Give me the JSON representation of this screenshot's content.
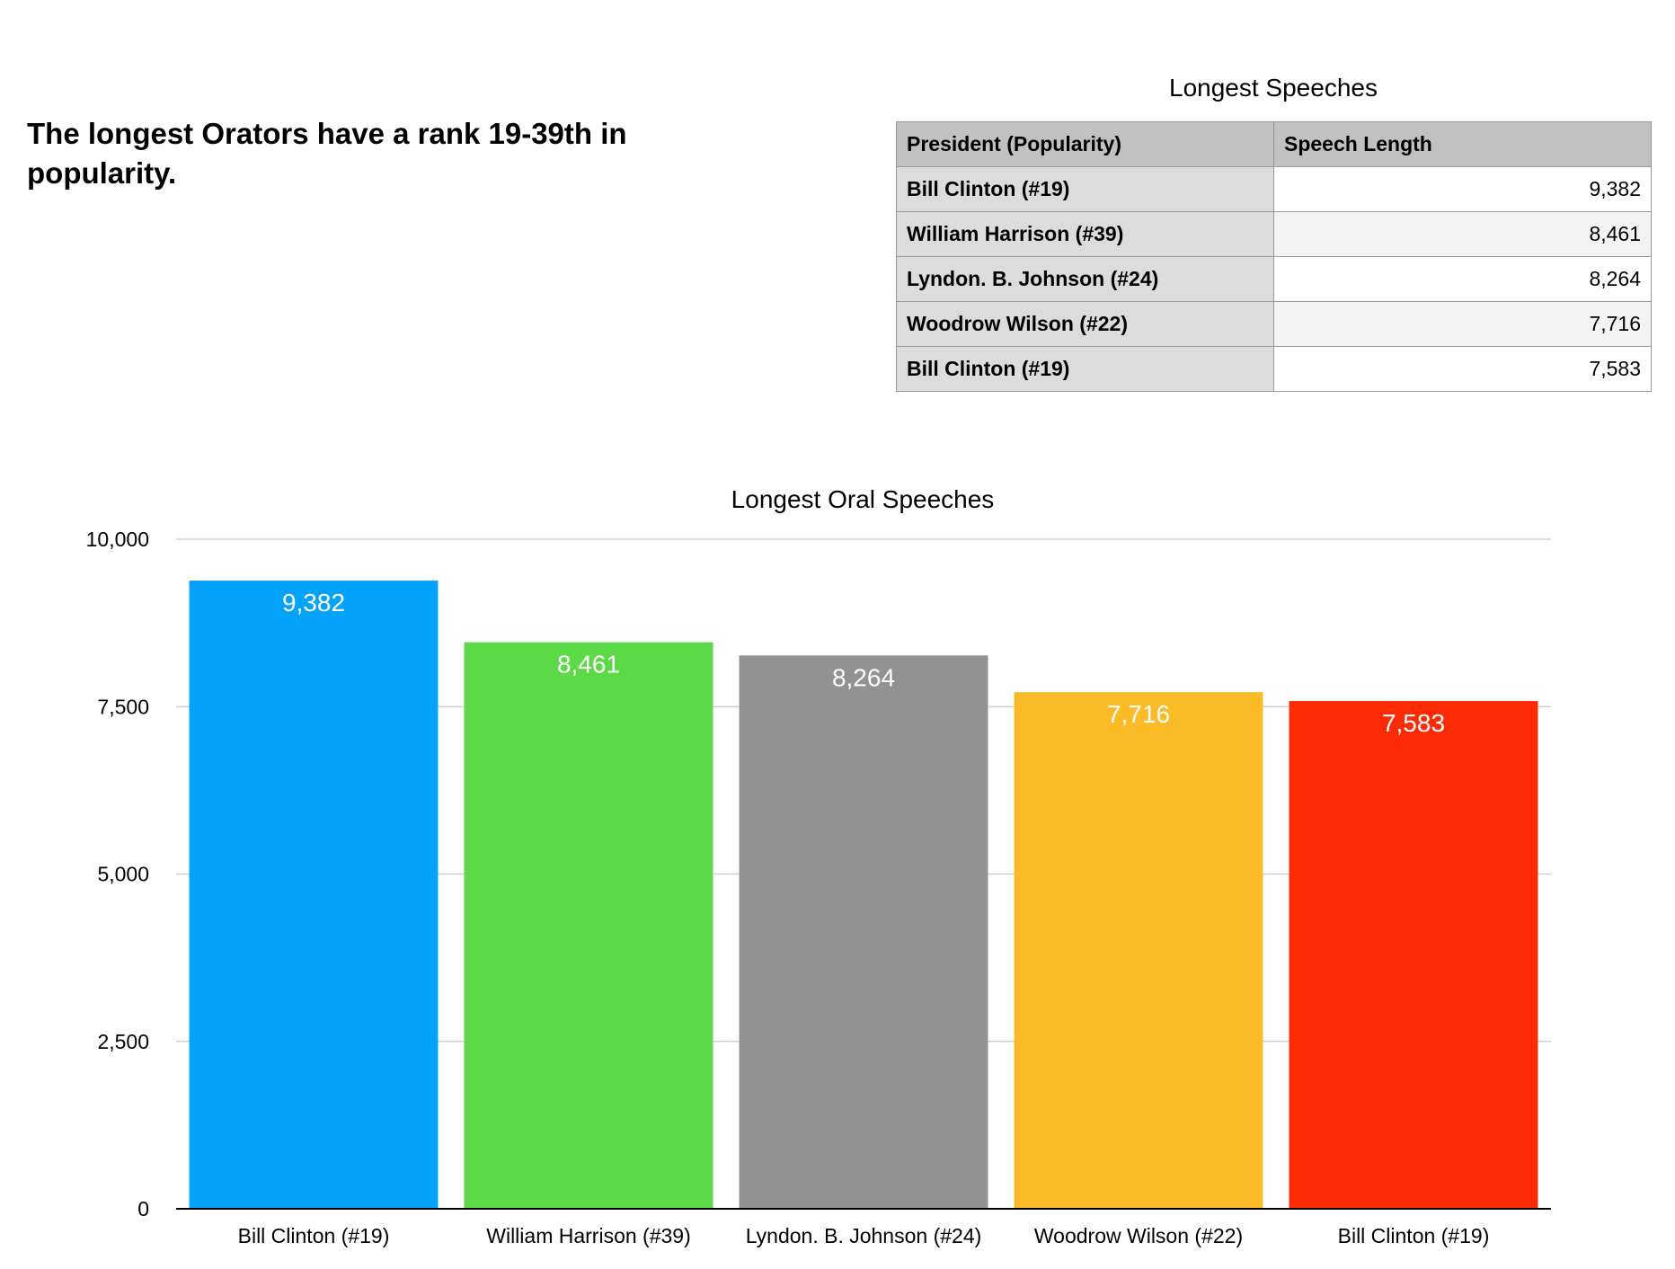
{
  "headline": "The longest Orators have a rank 19-39th in popularity.",
  "table": {
    "title": "Longest Speeches",
    "headers": [
      "President (Popularity)",
      "Speech Length"
    ],
    "rows": [
      {
        "name": "Bill Clinton (#19)",
        "value": "9,382"
      },
      {
        "name": "William Harrison (#39)",
        "value": "8,461"
      },
      {
        "name": "Lyndon. B. Johnson (#24)",
        "value": "8,264"
      },
      {
        "name": "Woodrow Wilson (#22)",
        "value": "7,716"
      },
      {
        "name": "Bill Clinton (#19)",
        "value": "7,583"
      }
    ]
  },
  "chart_data": {
    "type": "bar",
    "title": "Longest Oral Speeches",
    "categories": [
      "Bill Clinton (#19)",
      "William Harrison (#39)",
      "Lyndon. B. Johnson (#24)",
      "Woodrow Wilson (#22)",
      "Bill Clinton (#19)"
    ],
    "values": [
      9382,
      8461,
      8264,
      7716,
      7583
    ],
    "value_labels": [
      "9,382",
      "8,461",
      "8,264",
      "7,716",
      "7,583"
    ],
    "colors": [
      "#04a3fb",
      "#5dd847",
      "#929292",
      "#fabb26",
      "#fe2a06"
    ],
    "ylim": [
      0,
      10000
    ],
    "yticks": [
      0,
      2500,
      5000,
      7500,
      10000
    ],
    "ytick_labels": [
      "0",
      "2,500",
      "5,000",
      "7,500",
      "10,000"
    ],
    "xlabel": "",
    "ylabel": "",
    "grid": true,
    "legend": "none"
  }
}
